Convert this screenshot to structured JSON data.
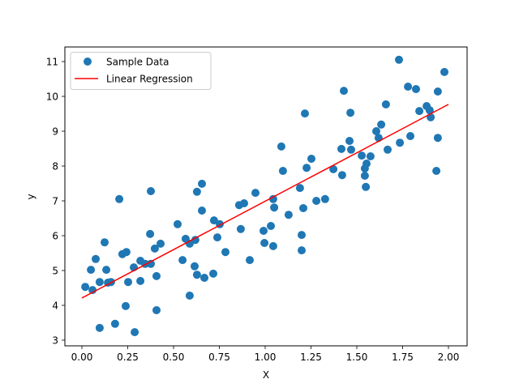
{
  "chart_data": {
    "type": "scatter",
    "title": "",
    "xlabel": "X",
    "ylabel": "y",
    "xlim": [
      -0.1,
      2.1
    ],
    "ylim": [
      2.85,
      11.35
    ],
    "xticks": [
      0.0,
      0.25,
      0.5,
      0.75,
      1.0,
      1.25,
      1.5,
      1.75,
      2.0
    ],
    "xtick_labels": [
      "0.00",
      "0.25",
      "0.50",
      "0.75",
      "1.00",
      "1.25",
      "1.50",
      "1.75",
      "2.00"
    ],
    "yticks": [
      3,
      4,
      5,
      6,
      7,
      8,
      9,
      10,
      11
    ],
    "ytick_labels": [
      "3",
      "4",
      "5",
      "6",
      "7",
      "8",
      "9",
      "10",
      "11"
    ],
    "grid": false,
    "legend": {
      "position": "upper left",
      "entries": [
        {
          "label": "Sample Data",
          "type": "marker",
          "color": "#1f77b4"
        },
        {
          "label": "Linear Regression",
          "type": "line",
          "color": "#ff0000"
        }
      ]
    },
    "series": [
      {
        "name": "Sample Data",
        "type": "scatter",
        "color": "#1f77b4",
        "x": [
          0.018,
          0.058,
          0.049,
          0.075,
          0.124,
          0.097,
          0.133,
          0.142,
          0.159,
          0.204,
          0.097,
          0.181,
          0.239,
          0.288,
          0.252,
          0.221,
          0.243,
          0.283,
          0.319,
          0.319,
          0.376,
          0.372,
          0.398,
          0.429,
          0.376,
          0.345,
          0.407,
          0.407,
          0.655,
          0.628,
          0.655,
          0.522,
          0.566,
          0.588,
          0.619,
          0.721,
          0.752,
          0.739,
          0.783,
          0.549,
          0.615,
          0.628,
          0.668,
          0.717,
          0.588,
          0.858,
          0.885,
          0.947,
          0.867,
          0.916,
          0.991,
          1.031,
          0.996,
          1.044,
          1.044,
          1.049,
          1.088,
          1.097,
          1.128,
          1.19,
          1.208,
          1.199,
          1.199,
          1.252,
          1.226,
          1.279,
          1.327,
          1.372,
          1.42,
          1.416,
          1.46,
          1.469,
          1.217,
          1.429,
          1.465,
          1.659,
          1.779,
          1.823,
          1.841,
          1.633,
          1.606,
          1.619,
          1.527,
          1.575,
          1.553,
          1.544,
          1.544,
          1.549,
          1.668,
          1.735,
          1.792,
          1.73,
          1.978,
          1.942,
          1.881,
          1.898,
          1.903,
          1.942,
          1.934
        ],
        "y": [
          4.53,
          4.44,
          5.02,
          5.33,
          5.81,
          4.67,
          5.02,
          4.65,
          4.67,
          7.05,
          3.35,
          3.47,
          3.98,
          3.23,
          4.67,
          5.47,
          5.53,
          5.09,
          5.28,
          4.7,
          7.28,
          6.05,
          5.63,
          5.77,
          5.19,
          5.19,
          4.84,
          3.86,
          7.49,
          7.26,
          6.72,
          6.33,
          5.91,
          5.77,
          5.88,
          6.44,
          6.33,
          5.95,
          5.53,
          5.3,
          5.12,
          4.88,
          4.79,
          4.91,
          4.28,
          6.88,
          6.93,
          7.23,
          6.19,
          5.3,
          6.14,
          6.28,
          5.79,
          5.7,
          7.05,
          6.81,
          8.56,
          7.86,
          6.6,
          7.37,
          6.79,
          6.02,
          5.58,
          8.21,
          7.95,
          7.0,
          7.05,
          7.91,
          7.74,
          8.49,
          8.72,
          8.47,
          9.51,
          10.16,
          9.53,
          9.77,
          10.28,
          10.21,
          9.58,
          9.19,
          9.0,
          8.81,
          8.3,
          8.28,
          8.07,
          7.93,
          7.72,
          7.4,
          8.47,
          8.67,
          8.86,
          11.05,
          10.7,
          10.14,
          9.72,
          9.6,
          9.4,
          8.81,
          7.86
        ]
      },
      {
        "name": "Linear Regression",
        "type": "line",
        "color": "#ff0000",
        "x": [
          0.0,
          2.0
        ],
        "y": [
          4.21,
          9.77
        ]
      }
    ]
  },
  "axes": {
    "xlabel": "X",
    "ylabel": "y"
  },
  "legend": {
    "items": [
      {
        "label": "Sample Data"
      },
      {
        "label": "Linear Regression"
      }
    ]
  }
}
